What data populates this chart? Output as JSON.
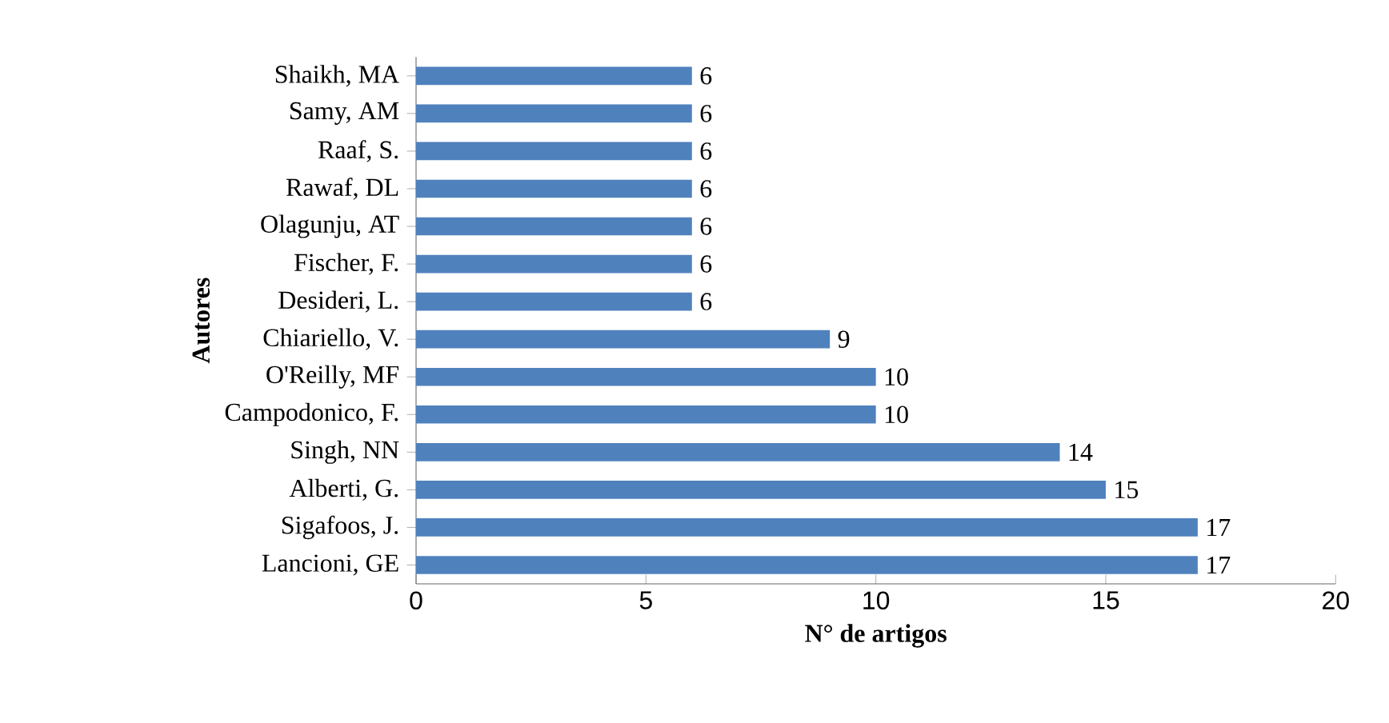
{
  "chart_data": {
    "type": "bar",
    "orientation": "horizontal",
    "xlabel": "N° de artigos",
    "ylabel": "Autores",
    "categories": [
      "Shaikh, MA",
      "Samy, AM",
      "Raaf, S.",
      "Rawaf, DL",
      "Olagunju, AT",
      "Fischer, F.",
      "Desideri, L.",
      "Chiariello, V.",
      "O'Reilly, MF",
      "Campodonico, F.",
      "Singh, NN",
      "Alberti, G.",
      "Sigafoos, J.",
      "Lancioni, GE"
    ],
    "values": [
      6,
      6,
      6,
      6,
      6,
      6,
      6,
      9,
      10,
      10,
      14,
      15,
      17,
      17
    ],
    "color": "#4f81bd",
    "data_labels": true,
    "xlim": [
      0,
      20
    ],
    "xticks": [
      0,
      5,
      10,
      15,
      20
    ]
  }
}
